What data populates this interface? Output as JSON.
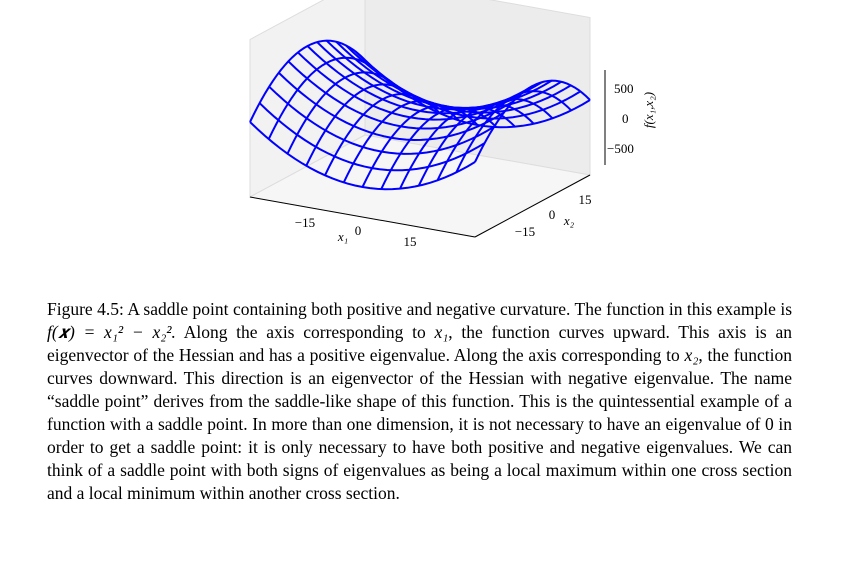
{
  "figure": {
    "x1_label": "x₁",
    "x1_ticks": [
      "−15",
      "0",
      "15"
    ],
    "x2_label": "x₂",
    "x2_ticks": [
      "−15",
      "0",
      "15"
    ],
    "z_label": "f(x₁,x₂)",
    "z_ticks": [
      "500",
      "0",
      "−500"
    ]
  },
  "caption": {
    "label": "Figure 4.5:",
    "parts": [
      "A saddle point containing both positive and negative curvature. The function in this example is ",
      "f(𝒙) = x₁² − x₂².",
      " Along the axis corresponding to ",
      "x₁",
      ", the function curves upward. This axis is an eigenvector of the Hessian and has a positive eigenvalue. Along the axis corresponding to ",
      "x₂",
      ", the function curves downward. This direction is an eigenvector of the Hessian with negative eigenvalue. The name “saddle point” derives from the saddle-like shape of this function. This is the quintessential example of a function with a saddle point. In more than one dimension, it is not necessary to have an eigenvalue of 0 in order to get a saddle point: it is only necessary to have both positive and negative eigenvalues. We can think of a saddle point with both signs of eigenvalues as being a local maximum within one cross section and a local minimum within another cross section."
    ]
  }
}
